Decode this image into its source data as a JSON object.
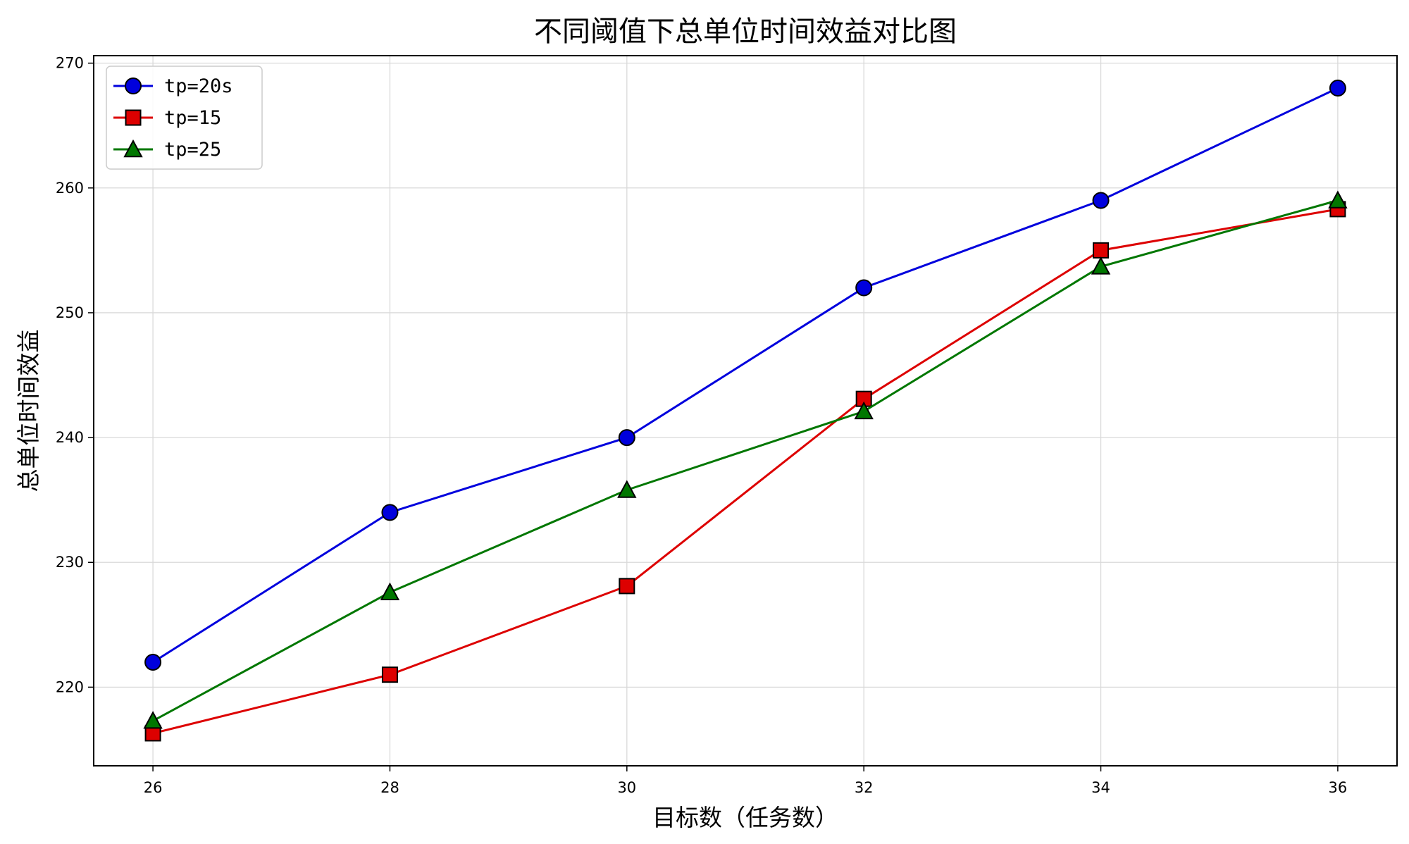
{
  "chart_data": {
    "type": "line",
    "title": "不同阈值下总单位时间效益对比图",
    "xlabel": "目标数（任务数）",
    "ylabel": "总单位时间效益",
    "x": [
      26,
      28,
      30,
      32,
      34,
      36
    ],
    "xticks": [
      26,
      28,
      30,
      32,
      34,
      36
    ],
    "yticks": [
      220,
      230,
      240,
      250,
      260,
      270
    ],
    "xlim": [
      25.5,
      36.5
    ],
    "ylim": [
      213.7,
      270.6
    ],
    "grid": true,
    "legend_position": "upper-left",
    "series": [
      {
        "name": "tp=20s",
        "color": "#0000dd",
        "marker": "circle",
        "values": [
          222,
          234,
          240,
          252,
          259,
          268
        ]
      },
      {
        "name": "tp=15",
        "color": "#dd0000",
        "marker": "square",
        "values": [
          216.3,
          221,
          228.1,
          243.1,
          255,
          258.3
        ]
      },
      {
        "name": "tp=25",
        "color": "#007700",
        "marker": "triangle",
        "values": [
          217.3,
          227.6,
          235.8,
          242.1,
          253.7,
          259
        ]
      }
    ]
  }
}
